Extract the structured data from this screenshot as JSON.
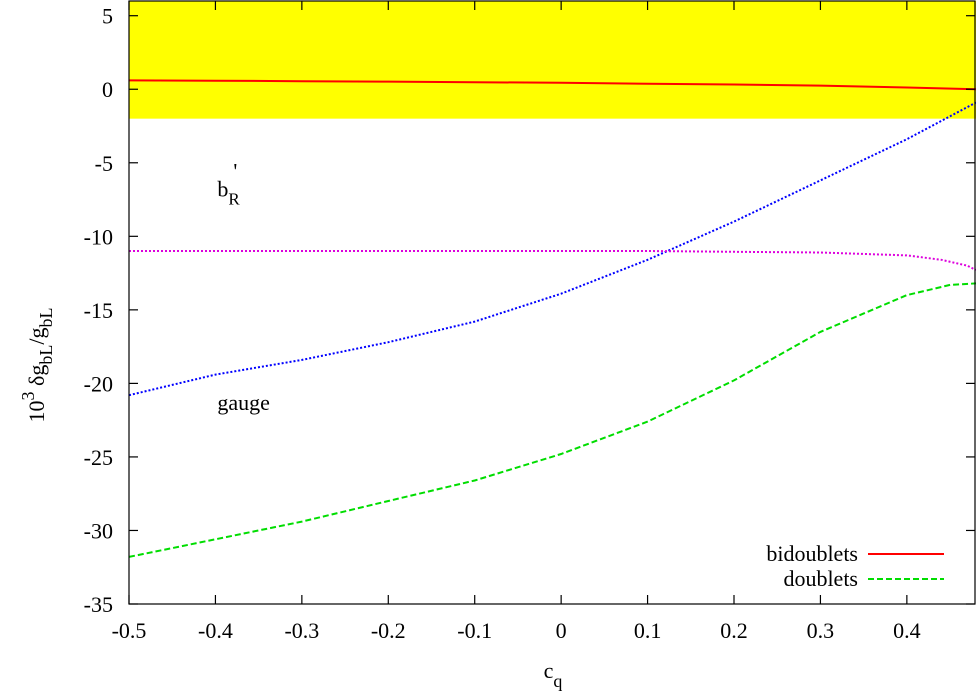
{
  "chart_data": {
    "type": "line",
    "title": "",
    "xlabel": "c",
    "xlabel_sub": "q",
    "ylabel_parts": {
      "prefix": "10",
      "exponent": "3",
      "delta": " δg",
      "sub1": "bL",
      "slash": "/g",
      "sub2": "bL"
    },
    "xlim": [
      -0.5,
      0.48
    ],
    "ylim": [
      -35,
      6
    ],
    "xticks": [
      -0.5,
      -0.4,
      -0.3,
      -0.2,
      -0.1,
      0,
      0.1,
      0.2,
      0.3,
      0.4
    ],
    "xtick_labels": [
      "-0.5",
      "-0.4",
      "-0.3",
      "-0.2",
      "-0.1",
      "0",
      "0.1",
      "0.2",
      "0.3",
      "0.4"
    ],
    "yticks": [
      5,
      0,
      -5,
      -10,
      -15,
      -20,
      -25,
      -30,
      -35
    ],
    "ytick_labels": [
      "5",
      "0",
      "-5",
      "-10",
      "-15",
      "-20",
      "-25",
      "-30",
      "-35"
    ],
    "grid": false,
    "legend_position": "bottom-right",
    "band": {
      "y_low": -2,
      "y_high": 6,
      "color": "#ffff00"
    },
    "series": [
      {
        "name": "bidoublets",
        "color": "#ff0000",
        "style": "solid",
        "in_legend": true,
        "x": [
          -0.5,
          -0.4,
          -0.3,
          -0.2,
          -0.1,
          0.0,
          0.1,
          0.2,
          0.3,
          0.4,
          0.48
        ],
        "y": [
          0.6,
          0.58,
          0.55,
          0.52,
          0.48,
          0.44,
          0.38,
          0.32,
          0.25,
          0.12,
          0.0
        ]
      },
      {
        "name": "doublets",
        "color": "#00dd00",
        "style": "dashed",
        "in_legend": true,
        "x": [
          -0.5,
          -0.4,
          -0.3,
          -0.2,
          -0.1,
          0.0,
          0.1,
          0.2,
          0.3,
          0.4,
          0.45,
          0.48
        ],
        "y": [
          -31.8,
          -30.6,
          -29.4,
          -28.0,
          -26.6,
          -24.8,
          -22.6,
          -19.8,
          -16.5,
          -14.0,
          -13.3,
          -13.2
        ]
      },
      {
        "color": "#0000ff",
        "style": "dotted",
        "in_legend": false,
        "x": [
          -0.5,
          -0.4,
          -0.3,
          -0.2,
          -0.1,
          0.0,
          0.1,
          0.2,
          0.3,
          0.4,
          0.48
        ],
        "y": [
          -20.8,
          -19.4,
          -18.4,
          -17.2,
          -15.8,
          -13.9,
          -11.6,
          -9.0,
          -6.2,
          -3.4,
          -0.9
        ]
      },
      {
        "color": "#dd00dd",
        "style": "dotted",
        "in_legend": false,
        "x": [
          -0.5,
          -0.4,
          -0.3,
          -0.2,
          -0.1,
          0.0,
          0.1,
          0.2,
          0.3,
          0.4,
          0.44,
          0.47,
          0.48
        ],
        "y": [
          -11.0,
          -11.0,
          -11.0,
          -11.0,
          -11.0,
          -11.0,
          -11.0,
          -11.05,
          -11.1,
          -11.3,
          -11.6,
          -12.0,
          -12.3
        ]
      }
    ],
    "annotations": [
      {
        "text": "gauge",
        "x": -0.4,
        "y": -21.8
      },
      {
        "text": "b",
        "sub": "R",
        "sup": "'",
        "x": -0.4,
        "y": -7.3
      }
    ]
  }
}
